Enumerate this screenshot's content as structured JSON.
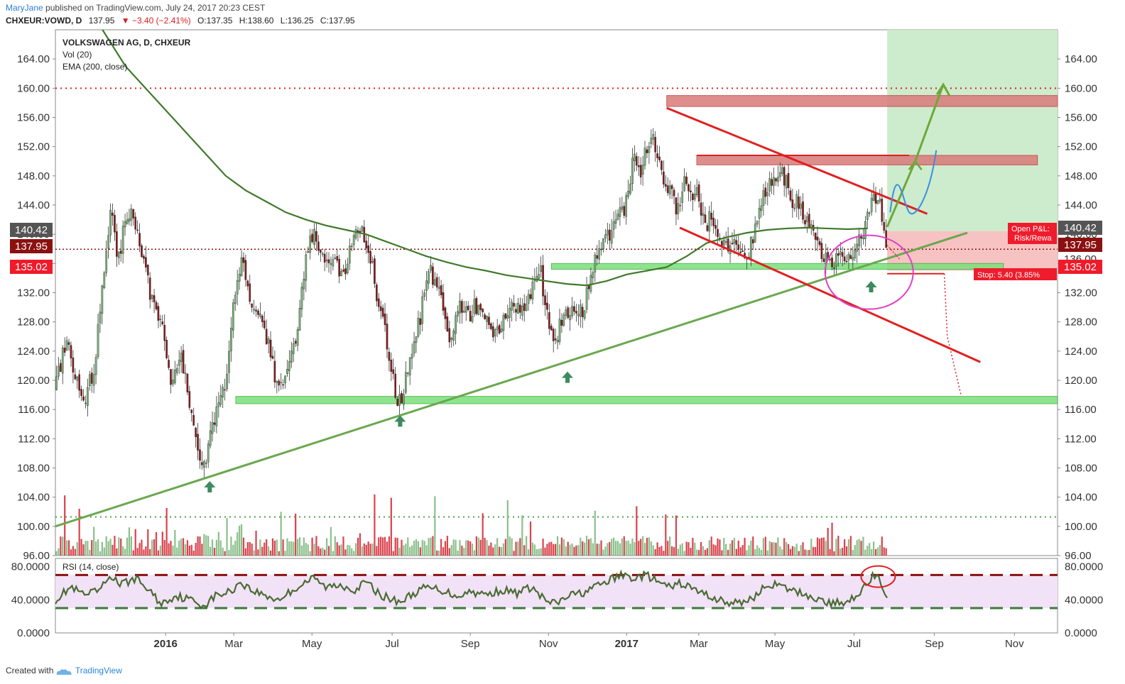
{
  "header": {
    "author": "MaryJane",
    "published": "published on TradingView.com, July 24, 2017 20:23 CEST",
    "symbol": "CHXEUR:VOWD, D",
    "last": "137.95",
    "change": "▼ −3.40 (−2.41%)",
    "open": "O:137.35",
    "high": "H:138.60",
    "low": "L:136.25",
    "close": "C:137.95"
  },
  "legend": {
    "title": "VOLKSWAGEN AG, D, CHXEUR",
    "vol": "Vol (20)",
    "ema": "EMA (200, close)",
    "rsi": "RSI (14, close)"
  },
  "footer": {
    "created": "Created with",
    "brand": "TradingView"
  },
  "price_labels": {
    "current": "140.42",
    "close": "137.95",
    "support": "135.02",
    "hidden": "136.00"
  },
  "annotations": {
    "pnl_line1": "Open P&L:",
    "pnl_line2": "Risk/Rewa",
    "stop": "Stop: 5.40 (3.85%"
  },
  "colors": {
    "up": "#7ab77a",
    "down": "#8b1a1a",
    "vol_up": "#8cc08c",
    "vol_down": "#d9444e",
    "ema": "#3f7a2a",
    "resistance_zone": "#d97a7a",
    "support_zone": "#7be07b",
    "target_zone": "#cdeccd",
    "trend_green": "#69a84f",
    "trend_red": "#e02020",
    "rsi_band": "#f2e2f7",
    "rsi_line": "#4a6b33"
  },
  "chart_data": {
    "type": "candlestick",
    "title": "VOLKSWAGEN AG, D, CHXEUR",
    "ylim": [
      96,
      168
    ],
    "y_ticks": [
      "164.00",
      "160.00",
      "156.00",
      "152.00",
      "148.00",
      "144.00",
      "140.00",
      "136.00",
      "132.00",
      "128.00",
      "124.00",
      "120.00",
      "116.00",
      "112.00",
      "108.00",
      "104.00",
      "100.00",
      "96.00"
    ],
    "rsi_ylim": [
      0,
      90
    ],
    "rsi_ticks": [
      "80.0000",
      "40.0000",
      "0.0000"
    ],
    "rsi_levels": [
      70,
      30
    ],
    "x_labels": [
      {
        "label": "2016",
        "bold": true,
        "t": 0.11
      },
      {
        "label": "Mar",
        "bold": false,
        "t": 0.178
      },
      {
        "label": "May",
        "bold": false,
        "t": 0.256
      },
      {
        "label": "Jul",
        "bold": false,
        "t": 0.336
      },
      {
        "label": "Sep",
        "bold": false,
        "t": 0.414
      },
      {
        "label": "Nov",
        "bold": false,
        "t": 0.492
      },
      {
        "label": "2017",
        "bold": true,
        "t": 0.57
      },
      {
        "label": "Mar",
        "bold": false,
        "t": 0.642
      },
      {
        "label": "May",
        "bold": false,
        "t": 0.718
      },
      {
        "label": "Jul",
        "bold": false,
        "t": 0.797
      },
      {
        "label": "Sep",
        "bold": false,
        "t": 0.877
      },
      {
        "label": "Nov",
        "bold": false,
        "t": 0.957
      }
    ],
    "price_path": [
      [
        0.0,
        119
      ],
      [
        0.01,
        125
      ],
      [
        0.02,
        121
      ],
      [
        0.03,
        117
      ],
      [
        0.04,
        123
      ],
      [
        0.05,
        137
      ],
      [
        0.055,
        144
      ],
      [
        0.062,
        136
      ],
      [
        0.07,
        142
      ],
      [
        0.078,
        143
      ],
      [
        0.085,
        139
      ],
      [
        0.095,
        131
      ],
      [
        0.105,
        128
      ],
      [
        0.115,
        120
      ],
      [
        0.125,
        123
      ],
      [
        0.133,
        118
      ],
      [
        0.142,
        111
      ],
      [
        0.148,
        108
      ],
      [
        0.155,
        113
      ],
      [
        0.165,
        117
      ],
      [
        0.172,
        121
      ],
      [
        0.178,
        131
      ],
      [
        0.185,
        137
      ],
      [
        0.195,
        131
      ],
      [
        0.205,
        128
      ],
      [
        0.215,
        124
      ],
      [
        0.222,
        118
      ],
      [
        0.232,
        122
      ],
      [
        0.242,
        127
      ],
      [
        0.25,
        137
      ],
      [
        0.258,
        141
      ],
      [
        0.265,
        136
      ],
      [
        0.275,
        137
      ],
      [
        0.285,
        134
      ],
      [
        0.295,
        138
      ],
      [
        0.305,
        141
      ],
      [
        0.315,
        136
      ],
      [
        0.325,
        129
      ],
      [
        0.333,
        124
      ],
      [
        0.338,
        119
      ],
      [
        0.343,
        117
      ],
      [
        0.35,
        120
      ],
      [
        0.358,
        125
      ],
      [
        0.366,
        130
      ],
      [
        0.374,
        135
      ],
      [
        0.384,
        132
      ],
      [
        0.394,
        126
      ],
      [
        0.404,
        130
      ],
      [
        0.414,
        129
      ],
      [
        0.424,
        131
      ],
      [
        0.434,
        126
      ],
      [
        0.444,
        127
      ],
      [
        0.454,
        131
      ],
      [
        0.464,
        129
      ],
      [
        0.474,
        132
      ],
      [
        0.484,
        135
      ],
      [
        0.492,
        128
      ],
      [
        0.498,
        125
      ],
      [
        0.505,
        128
      ],
      [
        0.513,
        130
      ],
      [
        0.52,
        128
      ],
      [
        0.527,
        130
      ],
      [
        0.534,
        135
      ],
      [
        0.542,
        138
      ],
      [
        0.55,
        140
      ],
      [
        0.558,
        141
      ],
      [
        0.566,
        143
      ],
      [
        0.572,
        146
      ],
      [
        0.578,
        151
      ],
      [
        0.585,
        148
      ],
      [
        0.59,
        152
      ],
      [
        0.596,
        155
      ],
      [
        0.6,
        151
      ],
      [
        0.606,
        148
      ],
      [
        0.614,
        146
      ],
      [
        0.62,
        143
      ],
      [
        0.627,
        147
      ],
      [
        0.634,
        145
      ],
      [
        0.641,
        146
      ],
      [
        0.648,
        141
      ],
      [
        0.655,
        143
      ],
      [
        0.662,
        140
      ],
      [
        0.669,
        138
      ],
      [
        0.675,
        140
      ],
      [
        0.682,
        138
      ],
      [
        0.69,
        137
      ],
      [
        0.698,
        140
      ],
      [
        0.705,
        145
      ],
      [
        0.712,
        147
      ],
      [
        0.72,
        148
      ],
      [
        0.727,
        148
      ],
      [
        0.734,
        145
      ],
      [
        0.741,
        144
      ],
      [
        0.748,
        142
      ],
      [
        0.755,
        140
      ],
      [
        0.762,
        138
      ],
      [
        0.77,
        137
      ],
      [
        0.777,
        136
      ],
      [
        0.784,
        138
      ],
      [
        0.791,
        136
      ],
      [
        0.798,
        138
      ],
      [
        0.804,
        139
      ],
      [
        0.809,
        141
      ],
      [
        0.815,
        145
      ],
      [
        0.821,
        145
      ],
      [
        0.826,
        141
      ],
      [
        0.83,
        138
      ]
    ],
    "ema_path": [
      [
        0.047,
        168
      ],
      [
        0.07,
        163
      ],
      [
        0.09,
        160
      ],
      [
        0.11,
        157
      ],
      [
        0.13,
        154
      ],
      [
        0.15,
        151
      ],
      [
        0.17,
        148
      ],
      [
        0.19,
        146
      ],
      [
        0.21,
        144.5
      ],
      [
        0.23,
        143
      ],
      [
        0.25,
        142
      ],
      [
        0.27,
        141.2
      ],
      [
        0.29,
        140.6
      ],
      [
        0.31,
        140
      ],
      [
        0.33,
        139
      ],
      [
        0.35,
        138
      ],
      [
        0.37,
        137
      ],
      [
        0.39,
        136.2
      ],
      [
        0.41,
        135.5
      ],
      [
        0.43,
        135
      ],
      [
        0.45,
        134.4
      ],
      [
        0.47,
        134
      ],
      [
        0.49,
        133.6
      ],
      [
        0.51,
        133.2
      ],
      [
        0.53,
        133
      ],
      [
        0.55,
        133.6
      ],
      [
        0.57,
        134.5
      ],
      [
        0.59,
        135
      ],
      [
        0.61,
        135.5
      ],
      [
        0.63,
        137
      ],
      [
        0.65,
        138.8
      ],
      [
        0.67,
        139.6
      ],
      [
        0.69,
        140.2
      ],
      [
        0.71,
        140.6
      ],
      [
        0.73,
        140.8
      ],
      [
        0.75,
        140.9
      ],
      [
        0.77,
        140.8
      ],
      [
        0.79,
        140.7
      ],
      [
        0.81,
        140.8
      ]
    ],
    "rsi_path": [
      [
        0.0,
        40
      ],
      [
        0.015,
        55
      ],
      [
        0.03,
        45
      ],
      [
        0.045,
        52
      ],
      [
        0.055,
        70
      ],
      [
        0.065,
        58
      ],
      [
        0.08,
        66
      ],
      [
        0.095,
        50
      ],
      [
        0.105,
        35
      ],
      [
        0.12,
        45
      ],
      [
        0.135,
        40
      ],
      [
        0.148,
        33
      ],
      [
        0.16,
        45
      ],
      [
        0.175,
        50
      ],
      [
        0.185,
        62
      ],
      [
        0.195,
        52
      ],
      [
        0.21,
        45
      ],
      [
        0.222,
        40
      ],
      [
        0.235,
        50
      ],
      [
        0.25,
        62
      ],
      [
        0.258,
        66
      ],
      [
        0.27,
        55
      ],
      [
        0.285,
        58
      ],
      [
        0.3,
        52
      ],
      [
        0.31,
        62
      ],
      [
        0.322,
        48
      ],
      [
        0.335,
        40
      ],
      [
        0.345,
        38
      ],
      [
        0.358,
        48
      ],
      [
        0.37,
        55
      ],
      [
        0.385,
        52
      ],
      [
        0.4,
        45
      ],
      [
        0.415,
        50
      ],
      [
        0.43,
        46
      ],
      [
        0.445,
        52
      ],
      [
        0.46,
        48
      ],
      [
        0.475,
        55
      ],
      [
        0.49,
        38
      ],
      [
        0.5,
        35
      ],
      [
        0.512,
        45
      ],
      [
        0.525,
        48
      ],
      [
        0.538,
        55
      ],
      [
        0.55,
        62
      ],
      [
        0.565,
        70
      ],
      [
        0.578,
        66
      ],
      [
        0.59,
        70
      ],
      [
        0.6,
        62
      ],
      [
        0.612,
        55
      ],
      [
        0.625,
        60
      ],
      [
        0.638,
        52
      ],
      [
        0.65,
        46
      ],
      [
        0.662,
        40
      ],
      [
        0.675,
        35
      ],
      [
        0.688,
        38
      ],
      [
        0.7,
        46
      ],
      [
        0.712,
        60
      ],
      [
        0.725,
        55
      ],
      [
        0.738,
        50
      ],
      [
        0.75,
        46
      ],
      [
        0.762,
        40
      ],
      [
        0.775,
        35
      ],
      [
        0.79,
        38
      ],
      [
        0.805,
        52
      ],
      [
        0.815,
        68
      ],
      [
        0.821,
        66
      ],
      [
        0.826,
        48
      ],
      [
        0.83,
        40
      ]
    ],
    "zones": {
      "resistance_upper": [
        157.5,
        159
      ],
      "resistance_mid": [
        149.5,
        150.8
      ],
      "support_mid": [
        135.2,
        136.0
      ],
      "support_low": [
        116.8,
        117.8
      ],
      "target_box": [
        140.42,
        168
      ],
      "risk_box": [
        135.02,
        140.42
      ]
    },
    "levels": {
      "dotted_top": 160.0,
      "dotted_close": 137.95,
      "dotted_volume": 101.3
    }
  }
}
